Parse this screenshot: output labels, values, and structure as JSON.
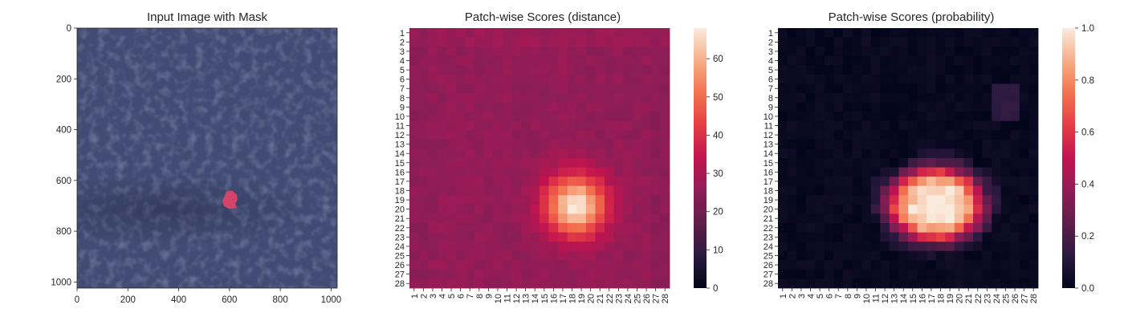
{
  "chart_data": [
    {
      "type": "image",
      "title": "Input Image with Mask",
      "xlim": [
        0,
        1024
      ],
      "ylim": [
        1024,
        0
      ],
      "xticks": [
        0,
        200,
        400,
        600,
        800,
        1000
      ],
      "yticks": [
        0,
        200,
        400,
        600,
        800,
        1000
      ],
      "image_colors": {
        "leather": "#414b73",
        "mask": "#e0446a"
      },
      "mask_region": {
        "x": [
          572,
          632
        ],
        "y": [
          640,
          712
        ]
      }
    },
    {
      "type": "heatmap",
      "title": "Patch-wise Scores (distance)",
      "rows": 28,
      "cols": 28,
      "tick_labels": [
        "1",
        "2",
        "3",
        "4",
        "5",
        "6",
        "7",
        "8",
        "9",
        "10",
        "11",
        "12",
        "13",
        "14",
        "15",
        "16",
        "17",
        "18",
        "19",
        "20",
        "21",
        "22",
        "23",
        "24",
        "25",
        "26",
        "27",
        "28"
      ],
      "colorbar": {
        "min": 0,
        "max": 68,
        "ticks": [
          0,
          10,
          20,
          30,
          40,
          50,
          60
        ]
      },
      "background_level": 26,
      "hotspot": {
        "row": 19.6,
        "col": 18.4,
        "peak": 68
      }
    },
    {
      "type": "heatmap",
      "title": "Patch-wise Scores (probability)",
      "rows": 28,
      "cols": 28,
      "tick_labels": [
        "1",
        "2",
        "3",
        "4",
        "5",
        "6",
        "7",
        "8",
        "9",
        "10",
        "11",
        "12",
        "13",
        "14",
        "15",
        "16",
        "17",
        "18",
        "19",
        "20",
        "21",
        "22",
        "23",
        "24",
        "25",
        "26",
        "27",
        "28"
      ],
      "colorbar": {
        "min": 0.0,
        "max": 1.0,
        "ticks": [
          "0.0",
          "0.2",
          "0.4",
          "0.6",
          "0.8",
          "1.0"
        ]
      },
      "background_level": 0.0,
      "hotspot": {
        "row": 19.5,
        "col": 17.5,
        "peak": 1.0
      }
    }
  ]
}
